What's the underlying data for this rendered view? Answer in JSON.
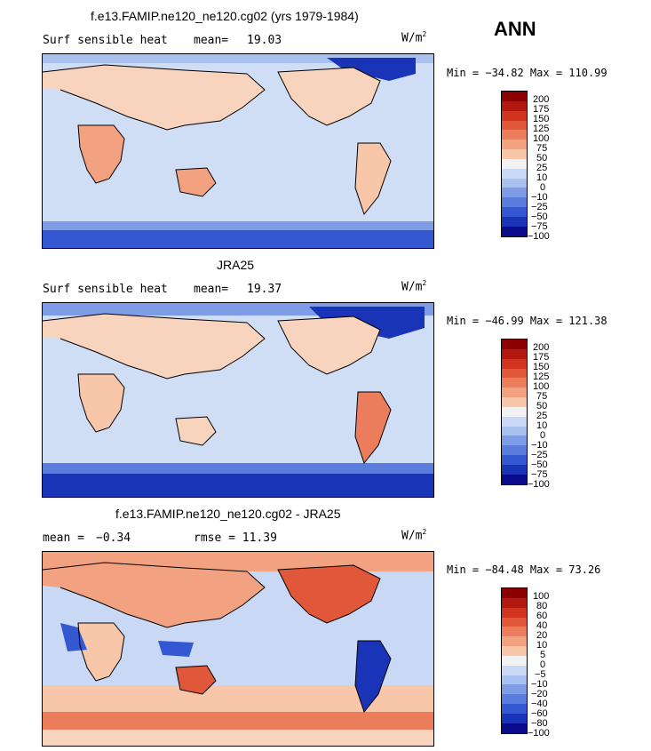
{
  "season": "ANN",
  "units": "W/m",
  "units_sup": "2",
  "panels": [
    {
      "title": "f.e13.FAMIP.ne120_ne120.cg02 (yrs 1979-1984)",
      "variable": "Surf sensible heat",
      "stat1_label": "mean=",
      "stat1_value": "19.03",
      "min_text": "Min = −34.82 Max = 110.99",
      "levels": [
        "200",
        "175",
        "150",
        "125",
        "100",
        "75",
        "50",
        "25",
        "10",
        "0",
        "−10",
        "−25",
        "−50",
        "−75",
        "−100"
      ]
    },
    {
      "title": "JRA25",
      "variable": "Surf sensible heat",
      "stat1_label": "mean=",
      "stat1_value": "19.37",
      "min_text": "Min = −46.99 Max = 121.38",
      "levels": [
        "200",
        "175",
        "150",
        "125",
        "100",
        "75",
        "50",
        "25",
        "10",
        "0",
        "−10",
        "−25",
        "−50",
        "−75",
        "−100"
      ]
    },
    {
      "title": "f.e13.FAMIP.ne120_ne120.cg02 - JRA25",
      "variable": "mean =",
      "stat1_label": "−0.34",
      "stat1_value": "rmse =  11.39",
      "min_text": "Min = −84.48 Max =  73.26",
      "levels": [
        "100",
        "80",
        "60",
        "40",
        "20",
        "10",
        "5",
        "0",
        "−5",
        "−10",
        "−20",
        "−40",
        "−60",
        "−80",
        "−100"
      ]
    }
  ],
  "colors": {
    "colorbar": [
      "#8b0000",
      "#b2180f",
      "#d0331f",
      "#e0573a",
      "#ec7d5c",
      "#f3a281",
      "#f8c6a9",
      "#f2f2f2",
      "#c8d8f5",
      "#a9c1ef",
      "#7f9de6",
      "#5a7cdc",
      "#3458d2",
      "#1a34b8",
      "#0a0a8c"
    ],
    "ocean_pale": "#cfdef5",
    "land_warm": "#f8d3bd"
  }
}
